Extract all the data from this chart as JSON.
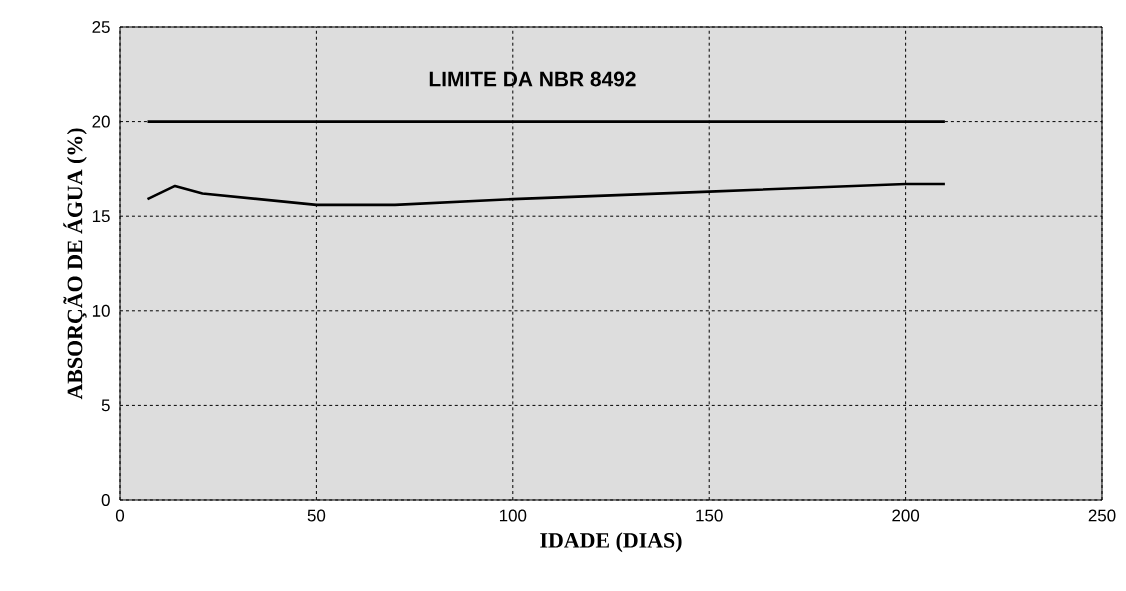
{
  "chart_data": {
    "type": "line",
    "xlabel": "IDADE (DIAS)",
    "ylabel": "ABSORÇÃO DE ÁGUA (%)",
    "series": [
      {
        "color": "#000000",
        "x": [
          7,
          210
        ],
        "values": [
          20,
          20
        ]
      },
      {
        "color": "#000000",
        "x": [
          7,
          14,
          21,
          50,
          70,
          100,
          150,
          200,
          210
        ],
        "values": [
          15.9,
          16.6,
          16.2,
          15.6,
          15.6,
          15.9,
          16.3,
          16.7,
          16.7
        ]
      }
    ],
    "annotations": [
      "LIMITE DA NBR 8492"
    ],
    "xlim": [
      0,
      250
    ],
    "ylim": [
      0,
      25
    ],
    "xticks": [
      0,
      50,
      100,
      150,
      200,
      250
    ],
    "yticks": [
      0,
      5,
      10,
      15,
      20,
      25
    ],
    "grid": true,
    "marker": "none",
    "line_style": "solid"
  }
}
